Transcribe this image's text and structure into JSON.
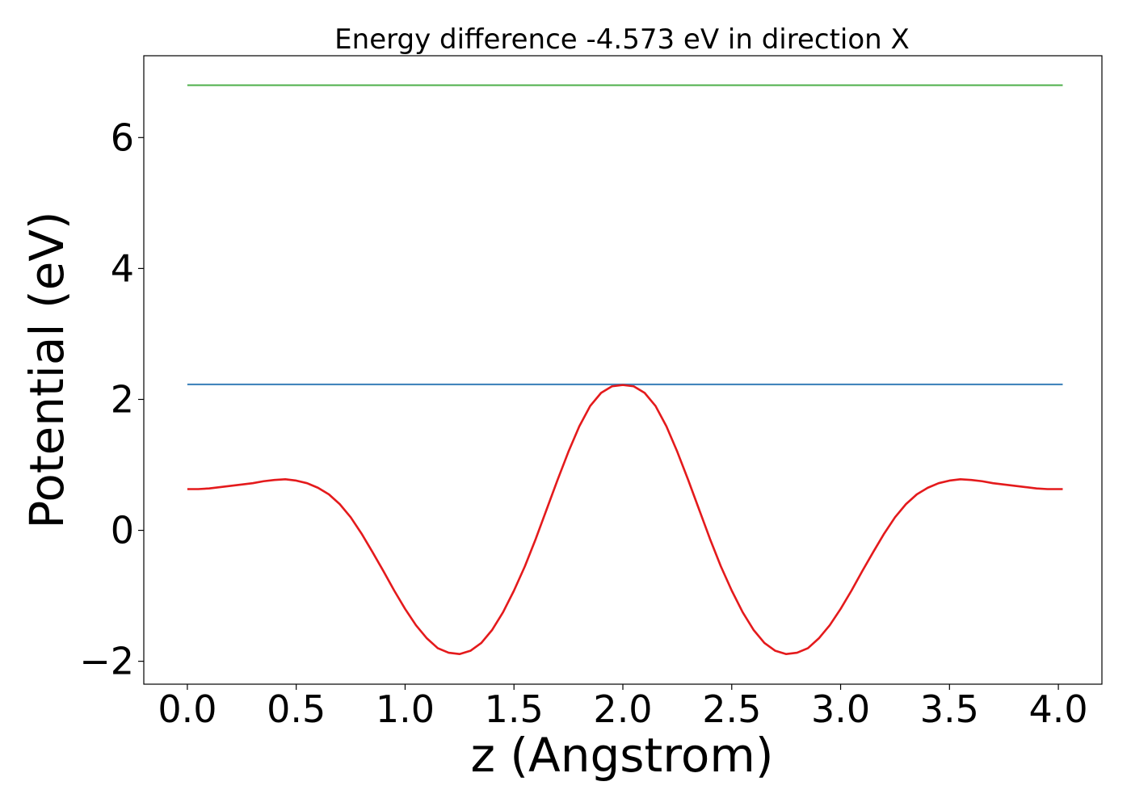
{
  "chart_data": {
    "type": "line",
    "title": "Energy difference -4.573 eV in direction X",
    "xlabel": "z (Angstrom)",
    "ylabel": "Potential (eV)",
    "xlim": [
      -0.2,
      4.2
    ],
    "ylim": [
      -2.35,
      7.25
    ],
    "xticks": [
      0.0,
      0.5,
      1.0,
      1.5,
      2.0,
      2.5,
      3.0,
      3.5,
      4.0
    ],
    "xtick_labels": [
      "0.0",
      "0.5",
      "1.0",
      "1.5",
      "2.0",
      "2.5",
      "3.0",
      "3.5",
      "4.0"
    ],
    "yticks": [
      -2,
      0,
      2,
      4,
      6
    ],
    "ytick_labels": [
      "−2",
      "0",
      "2",
      "4",
      "6"
    ],
    "grid": false,
    "series": [
      {
        "color": "#4daf4a",
        "x": [
          0.0,
          4.02
        ],
        "y": [
          6.8,
          6.8
        ]
      },
      {
        "color": "#377eb8",
        "x": [
          0.0,
          4.02
        ],
        "y": [
          2.23,
          2.23
        ]
      },
      {
        "color": "#e41a1c",
        "x": [
          0.0,
          0.05,
          0.1,
          0.15,
          0.2,
          0.25,
          0.3,
          0.35,
          0.4,
          0.45,
          0.5,
          0.55,
          0.6,
          0.65,
          0.7,
          0.75,
          0.8,
          0.85,
          0.9,
          0.95,
          1.0,
          1.05,
          1.1,
          1.15,
          1.2,
          1.25,
          1.3,
          1.35,
          1.4,
          1.45,
          1.5,
          1.55,
          1.6,
          1.65,
          1.7,
          1.75,
          1.8,
          1.85,
          1.9,
          1.95,
          2.0,
          2.05,
          2.1,
          2.15,
          2.2,
          2.25,
          2.3,
          2.35,
          2.4,
          2.45,
          2.5,
          2.55,
          2.6,
          2.65,
          2.7,
          2.75,
          2.8,
          2.85,
          2.9,
          2.95,
          3.0,
          3.05,
          3.1,
          3.15,
          3.2,
          3.25,
          3.3,
          3.35,
          3.4,
          3.45,
          3.5,
          3.55,
          3.6,
          3.65,
          3.7,
          3.75,
          3.8,
          3.85,
          3.9,
          3.95,
          4.02
        ],
        "y": [
          0.63,
          0.63,
          0.64,
          0.66,
          0.68,
          0.7,
          0.72,
          0.75,
          0.77,
          0.78,
          0.76,
          0.72,
          0.65,
          0.55,
          0.4,
          0.2,
          -0.05,
          -0.33,
          -0.62,
          -0.92,
          -1.2,
          -1.45,
          -1.65,
          -1.8,
          -1.87,
          -1.89,
          -1.84,
          -1.72,
          -1.52,
          -1.25,
          -0.92,
          -0.55,
          -0.13,
          0.32,
          0.77,
          1.2,
          1.59,
          1.9,
          2.1,
          2.2,
          2.22,
          2.2,
          2.1,
          1.9,
          1.59,
          1.2,
          0.77,
          0.32,
          -0.13,
          -0.55,
          -0.92,
          -1.25,
          -1.52,
          -1.72,
          -1.84,
          -1.89,
          -1.87,
          -1.8,
          -1.65,
          -1.45,
          -1.2,
          -0.92,
          -0.62,
          -0.33,
          -0.05,
          0.2,
          0.4,
          0.55,
          0.65,
          0.72,
          0.76,
          0.78,
          0.77,
          0.75,
          0.72,
          0.7,
          0.68,
          0.66,
          0.64,
          0.63,
          0.63
        ]
      }
    ]
  }
}
